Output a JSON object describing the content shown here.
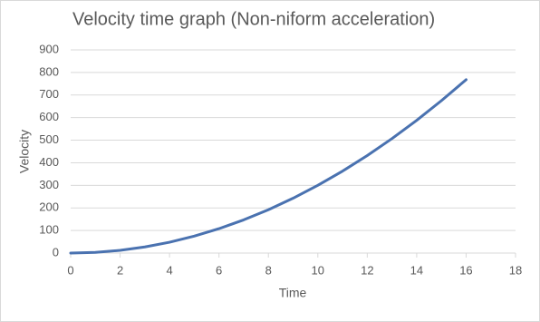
{
  "chart_data": {
    "type": "line",
    "title": "Velocity time graph (Non-niform acceleration)",
    "x_label": "Time",
    "y_label": "Velocity",
    "x": [
      0,
      1,
      2,
      3,
      4,
      5,
      6,
      7,
      8,
      9,
      10,
      11,
      12,
      13,
      14,
      15,
      16
    ],
    "series": [
      {
        "name": "Velocity",
        "color": "#4a72b0",
        "values": [
          0,
          3,
          12,
          27,
          48,
          75,
          108,
          147,
          192,
          243,
          300,
          363,
          432,
          507,
          588,
          675,
          768
        ]
      }
    ],
    "xlim": [
      0,
      18
    ],
    "xticks": [
      0,
      2,
      4,
      6,
      8,
      10,
      12,
      14,
      16,
      18
    ],
    "ylim": [
      0,
      900
    ],
    "yticks": [
      0,
      100,
      200,
      300,
      400,
      500,
      600,
      700,
      800,
      900
    ],
    "grid": true
  }
}
